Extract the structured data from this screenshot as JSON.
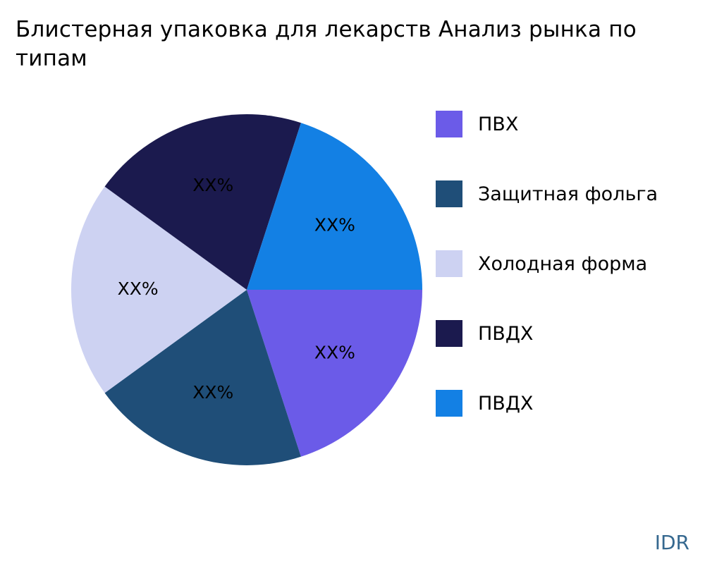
{
  "title": "Блистерная упаковка для лекарств Анализ рынка по типам",
  "watermark": "IDR",
  "chart_data": {
    "type": "pie",
    "title": "Блистерная упаковка для лекарств Анализ рынка по типам",
    "labels": [
      "ПВХ",
      "Защитная фольга",
      "Холодная форма",
      "ПВДХ",
      "ПВДХ"
    ],
    "values": [
      20,
      20,
      20,
      20,
      20
    ],
    "value_labels": [
      "XX%",
      "XX%",
      "XX%",
      "XX%",
      "XX%"
    ],
    "colors": [
      "#6b5be8",
      "#1f4e78",
      "#cdd2f2",
      "#1b1a4e",
      "#1380e4"
    ],
    "legend_position": "right",
    "start_angle_deg": 0,
    "direction": "clockwise",
    "center": [
      350,
      411
    ],
    "radius": 249,
    "label_distance": 0.62
  }
}
